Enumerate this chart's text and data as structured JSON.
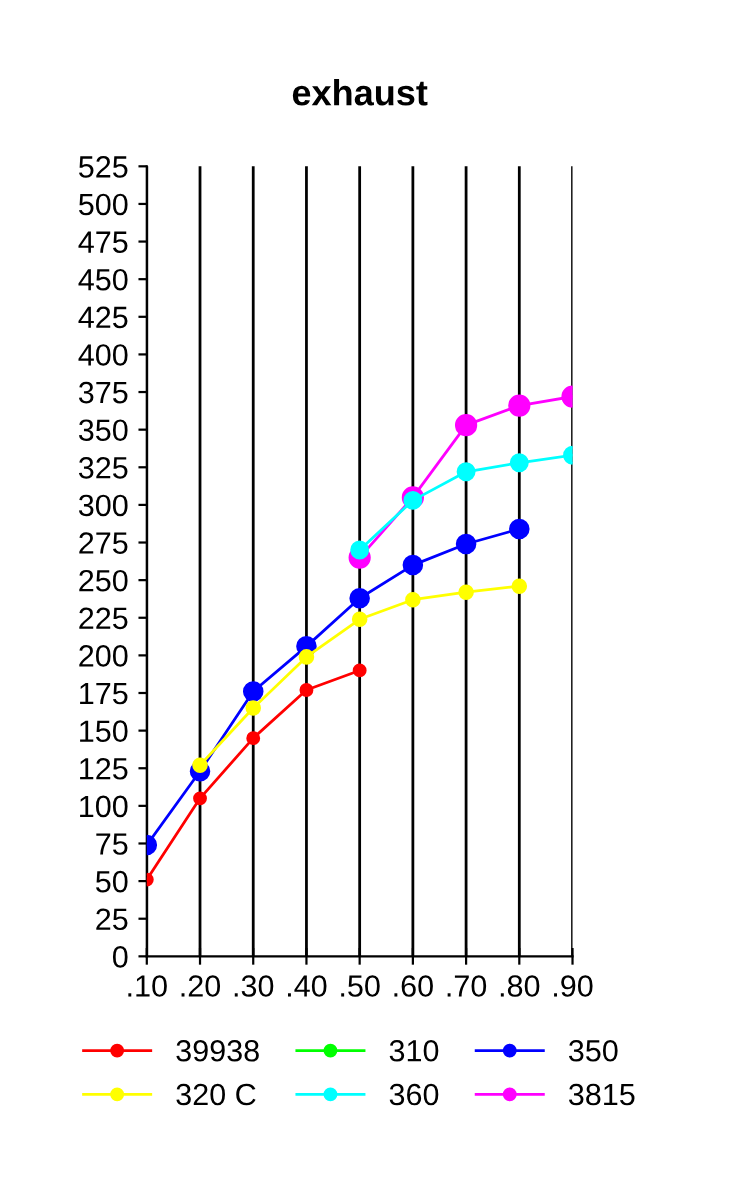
{
  "chart_data": {
    "type": "line",
    "title": "exhaust",
    "categories": [
      ".10",
      ".20",
      ".30",
      ".40",
      ".50",
      ".60",
      ".70",
      ".80",
      ".90"
    ],
    "series": [
      {
        "name": "39938",
        "color": "#ff0000",
        "values": [
          51,
          105,
          145,
          177,
          190,
          null,
          null,
          null,
          null
        ]
      },
      {
        "name": "320 C",
        "color": "#ffff00",
        "values": [
          null,
          127,
          165,
          199,
          224,
          237,
          242,
          246,
          null
        ]
      },
      {
        "name": "310",
        "color": "#00ff00",
        "values": [
          null,
          null,
          null,
          null,
          null,
          null,
          null,
          null,
          null
        ]
      },
      {
        "name": "360",
        "color": "#00ffff",
        "values": [
          null,
          null,
          null,
          null,
          270,
          303,
          322,
          328,
          333
        ]
      },
      {
        "name": "350",
        "color": "#0000ff",
        "values": [
          74,
          123,
          176,
          206,
          238,
          260,
          274,
          284,
          null
        ]
      },
      {
        "name": "3815",
        "color": "#ff00ff",
        "values": [
          null,
          null,
          null,
          null,
          265,
          305,
          353,
          366,
          372
        ]
      }
    ],
    "ylim": [
      0,
      525
    ],
    "yticks": [
      0,
      25,
      50,
      75,
      100,
      125,
      150,
      175,
      200,
      225,
      250,
      275,
      300,
      325,
      350,
      375,
      400,
      425,
      450,
      475,
      500,
      525
    ],
    "grid": "x",
    "legend": "bottom",
    "marker": "circle",
    "line_style": "solid"
  }
}
